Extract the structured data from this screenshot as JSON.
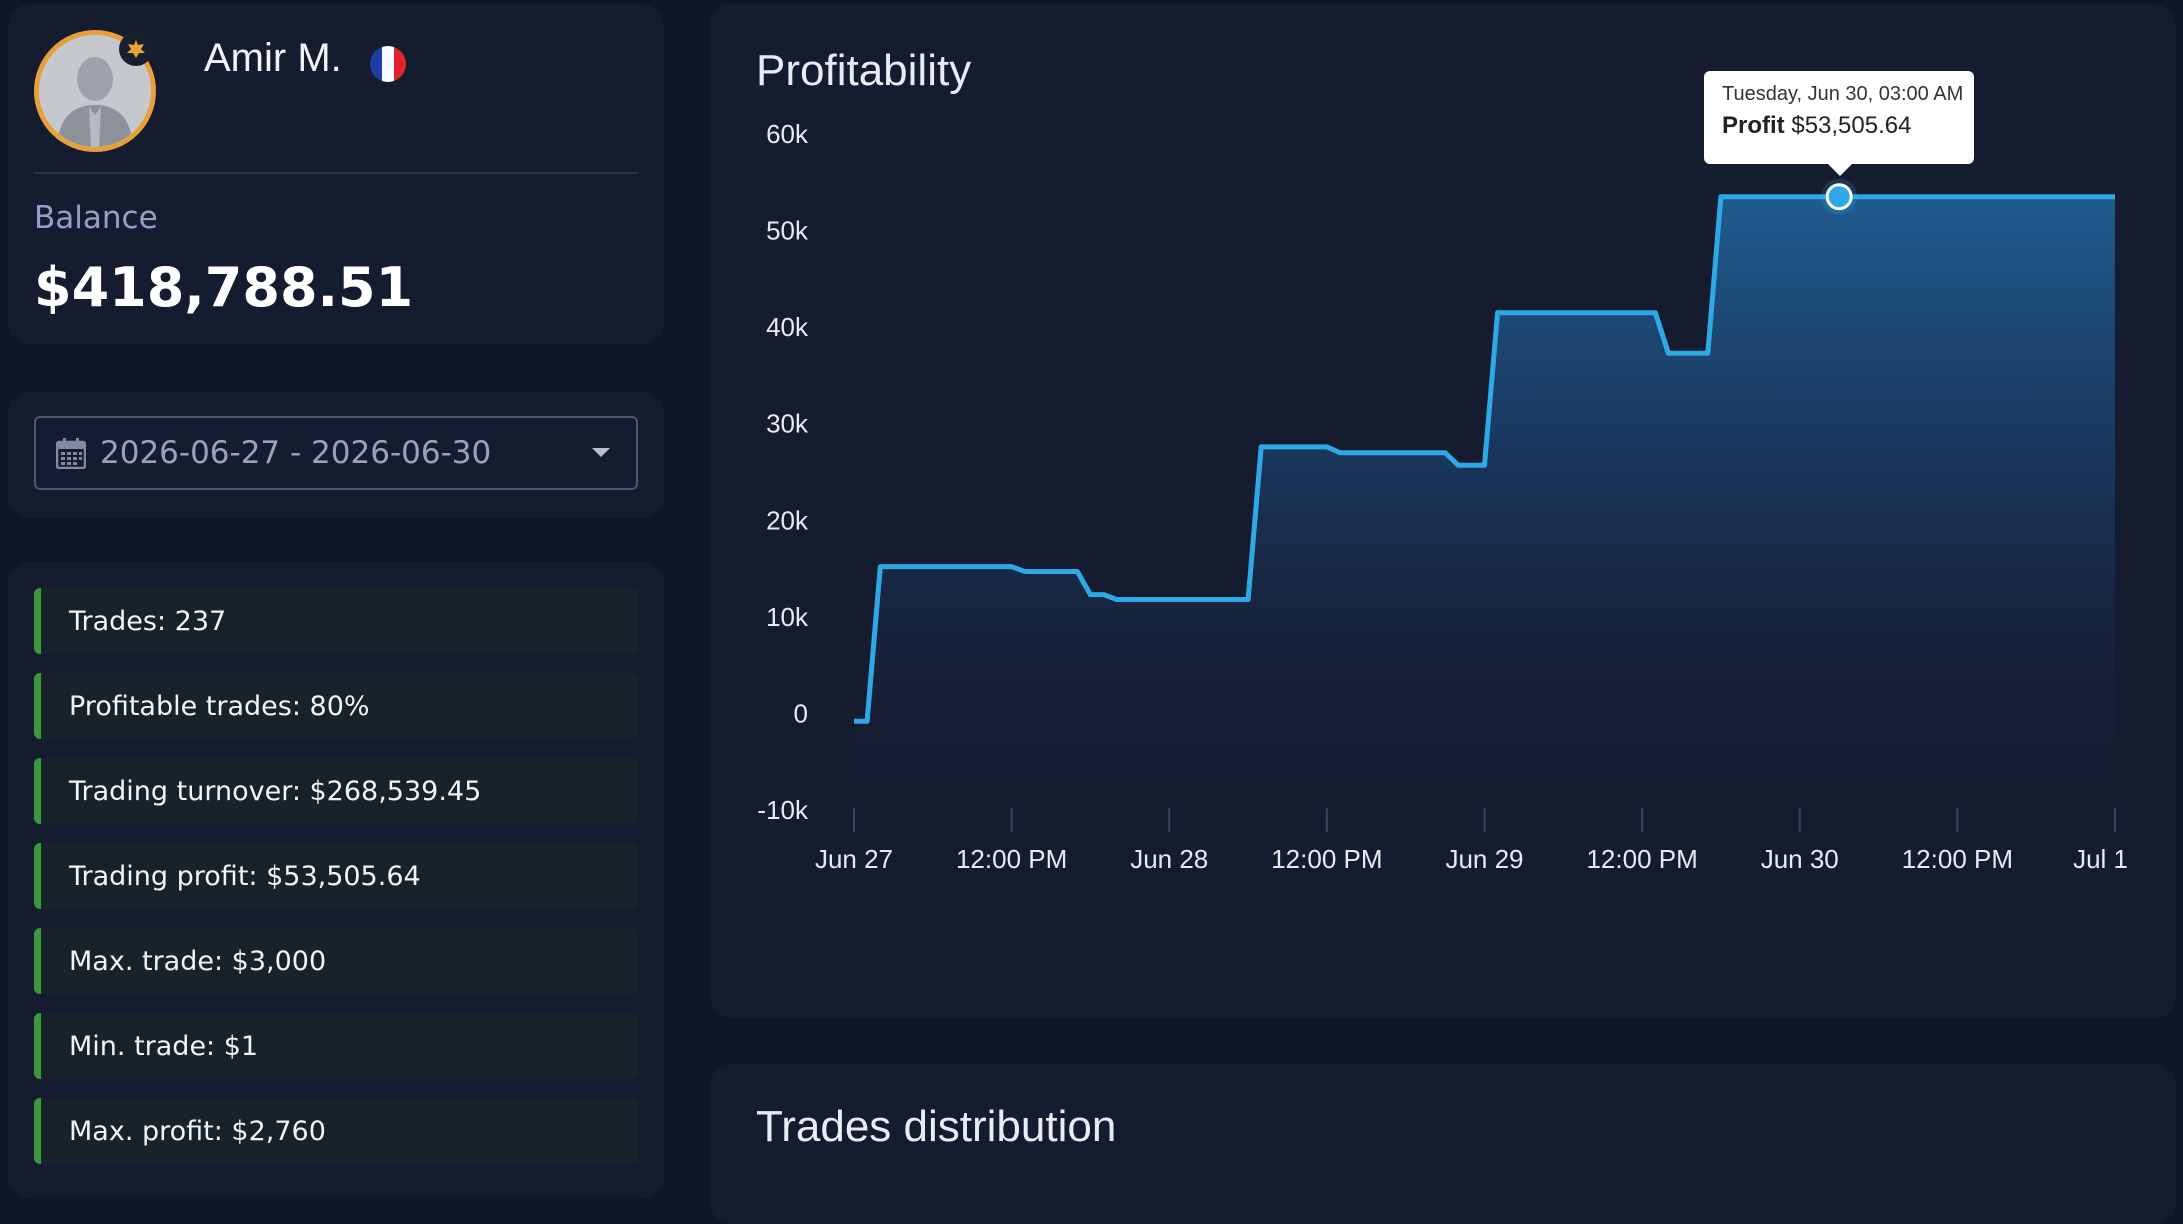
{
  "profile": {
    "name": "Amir M.",
    "flag_colors": [
      "#1f3fa0",
      "#ffffff",
      "#e0242f"
    ],
    "balance_label": "Balance",
    "balance_value": "$418,788.51"
  },
  "date_range": {
    "value": "2026-06-27 - 2026-06-30",
    "icon": "calendar-icon"
  },
  "stats": [
    "Trades: 237",
    "Profitable trades: 80%",
    "Trading turnover: $268,539.45",
    "Trading profit: $53,505.64",
    "Max. trade: $3,000",
    "Min. trade: $1",
    "Max. profit: $2,760"
  ],
  "colors": {
    "accent": "#2ea8e6",
    "stat_border": "#3a9a3a",
    "avatar_ring": "#e8a13a"
  },
  "chart_data": {
    "type": "area",
    "title": "Profitability",
    "y_ticks": [
      "60k",
      "50k",
      "40k",
      "30k",
      "20k",
      "10k",
      "0",
      "-10k"
    ],
    "ylim": [
      -10000,
      60000
    ],
    "x_ticks": [
      "Jun 27",
      "12:00 PM",
      "Jun 28",
      "12:00 PM",
      "Jun 29",
      "12:00 PM",
      "Jun 30",
      "12:00 PM",
      "Jul 1"
    ],
    "xlim": [
      "2026-06-27T00:00",
      "2026-07-01T00:00"
    ],
    "grid": false,
    "series": [
      {
        "x": [
          "2026-06-27T00:00",
          "2026-06-27T01:00",
          "2026-06-27T02:00",
          "2026-06-27T12:00",
          "2026-06-27T13:00",
          "2026-06-27T17:00",
          "2026-06-27T18:00",
          "2026-06-27T19:00",
          "2026-06-27T20:00",
          "2026-06-28T06:00",
          "2026-06-28T07:00",
          "2026-06-28T12:00",
          "2026-06-28T13:00",
          "2026-06-28T21:00",
          "2026-06-28T22:00",
          "2026-06-29T00:00",
          "2026-06-29T01:00",
          "2026-06-29T04:00",
          "2026-06-29T05:00",
          "2026-06-29T13:00",
          "2026-06-29T14:00",
          "2026-06-29T16:00",
          "2026-06-29T17:00",
          "2026-06-29T18:00",
          "2026-06-30T03:00",
          "2026-07-01T00:00"
        ],
        "y": [
          -800,
          -800,
          15200,
          15200,
          14700,
          14700,
          12300,
          12300,
          11800,
          11800,
          27600,
          27600,
          27000,
          27000,
          25700,
          25700,
          41500,
          41500,
          41500,
          41500,
          37300,
          37300,
          37300,
          53505.64,
          53505.64,
          53505.64
        ]
      }
    ],
    "tooltip": {
      "date": "Tuesday, Jun 30, 03:00 AM",
      "label": "Profit",
      "value": "$53,505.64"
    }
  },
  "distribution": {
    "title": "Trades distribution"
  }
}
